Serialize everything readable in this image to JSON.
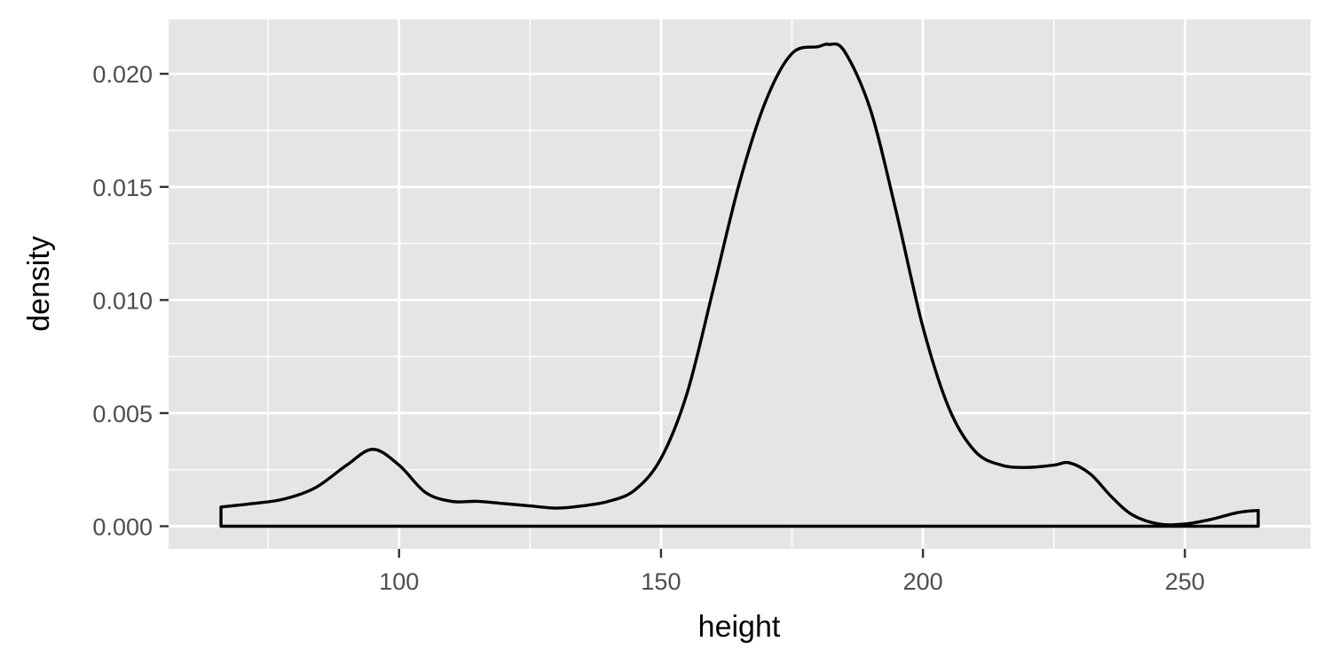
{
  "chart_data": {
    "type": "area",
    "title": "",
    "xlabel": "height",
    "ylabel": "density",
    "xlim": [
      56,
      274
    ],
    "ylim": [
      -0.001,
      0.0224
    ],
    "x_major_ticks": [
      100,
      150,
      200,
      250
    ],
    "x_tick_labels": [
      "100",
      "150",
      "200",
      "250"
    ],
    "x_minor_ticks": [
      75,
      125,
      175,
      225
    ],
    "y_major_ticks": [
      0,
      0.005,
      0.01,
      0.015,
      0.02
    ],
    "y_tick_labels": [
      "0.000",
      "0.005",
      "0.010",
      "0.015",
      "0.020"
    ],
    "y_minor_ticks": [
      0.0025,
      0.0075,
      0.0125,
      0.0175
    ],
    "grid": true,
    "series": [
      {
        "x": [
          66,
          72,
          78,
          84,
          90,
          95,
          100,
          105,
          110,
          115,
          120,
          125,
          130,
          135,
          140,
          145,
          150,
          155,
          160,
          165,
          170,
          175,
          180,
          182,
          185,
          190,
          195,
          200,
          205,
          210,
          215,
          220,
          225,
          228,
          232,
          236,
          240,
          245,
          250,
          255,
          260,
          264
        ],
        "y": [
          0.00085,
          0.001,
          0.0012,
          0.0017,
          0.0027,
          0.0034,
          0.0027,
          0.0015,
          0.0011,
          0.0011,
          0.001,
          0.0009,
          0.0008,
          0.0009,
          0.0011,
          0.0016,
          0.003,
          0.0059,
          0.0105,
          0.0152,
          0.0188,
          0.0209,
          0.0212,
          0.0213,
          0.021,
          0.0184,
          0.0138,
          0.0088,
          0.0052,
          0.0033,
          0.0027,
          0.0026,
          0.0027,
          0.0028,
          0.0023,
          0.0013,
          0.0005,
          0.0001,
          0.0001,
          0.0003,
          0.0006,
          0.0007
        ]
      }
    ],
    "colors": {
      "panel_background": "#e5e5e5",
      "grid": "#ffffff",
      "line": "#000000",
      "fill": "#e5e5e5",
      "tick_text": "#4d4d4d",
      "tick_mark": "#333333"
    }
  }
}
